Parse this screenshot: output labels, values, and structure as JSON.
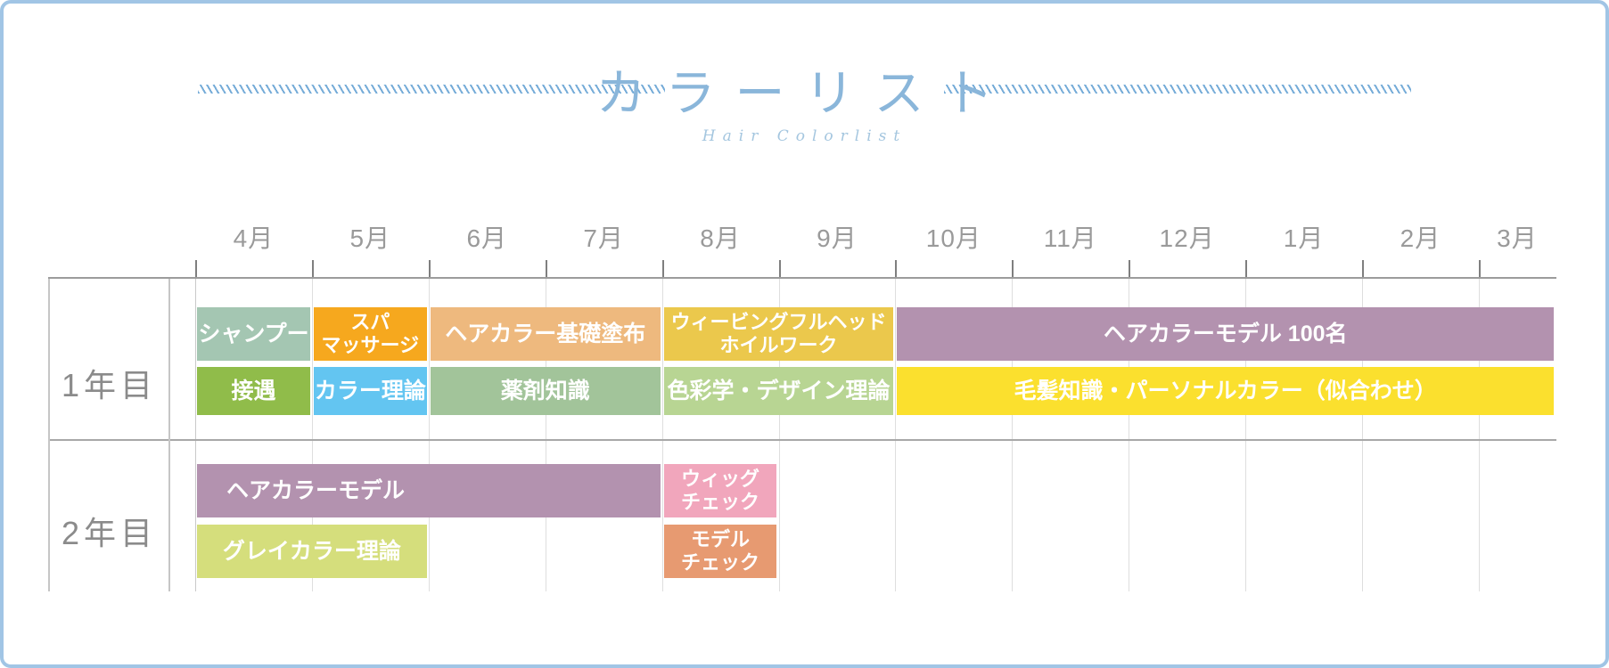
{
  "title": {
    "main": "カラーリスト",
    "sub": "Hair Colorlist"
  },
  "palette": {
    "frame_blue": "#a1c5e5",
    "title_blue": "#8ab6da",
    "subtitle_blue": "#a4c6df",
    "hatch_blue": "#76acd8",
    "row_label_gray": "#8b8b8b",
    "month_label_gray": "#9a9a9a",
    "grid_light": "#dedede",
    "grid_dark": "#9c9c9c",
    "tick_gray": "#7f7f7f",
    "bar_text": "#ffffff"
  },
  "chart_data": {
    "type": "bar",
    "subtype": "gantt-curriculum-timeline",
    "title": "カラーリスト",
    "subtitle": "Hair Colorlist",
    "x_categories": [
      "4月",
      "5月",
      "6月",
      "7月",
      "8月",
      "9月",
      "10月",
      "11月",
      "12月",
      "1月",
      "2月",
      "3月"
    ],
    "grid": true,
    "rows": [
      {
        "label": "1年目",
        "tracks": [
          [
            {
              "label": "シャンプー",
              "lines": [
                "シャンプー"
              ],
              "period": "4月",
              "start_index": 0,
              "span": 1,
              "color": "#a4c6b2"
            },
            {
              "label": "スパ マッサージ",
              "lines": [
                "スパ",
                "マッサージ"
              ],
              "period": "5月",
              "start_index": 1,
              "span": 1,
              "color": "#f6a81e"
            },
            {
              "label": "ヘアカラー基礎塗布",
              "lines": [
                "ヘアカラー基礎塗布"
              ],
              "period": "6月-7月",
              "start_index": 2,
              "span": 2,
              "color": "#eeb97e"
            },
            {
              "label": "ウィービングフルヘッド ホイルワーク",
              "lines": [
                "ウィービングフルヘッド",
                "ホイルワーク"
              ],
              "period": "8月-9月",
              "start_index": 4,
              "span": 2,
              "color": "#ebc84c"
            },
            {
              "label": "ヘアカラーモデル 100名",
              "lines": [
                "ヘアカラーモデル 100名"
              ],
              "period": "10月-3月",
              "start_index": 6,
              "span": 6,
              "color": "#b392af"
            }
          ],
          [
            {
              "label": "接遇",
              "lines": [
                "接遇"
              ],
              "period": "4月",
              "start_index": 0,
              "span": 1,
              "color": "#90bc4a"
            },
            {
              "label": "カラー理論",
              "lines": [
                "カラー理論"
              ],
              "period": "5月",
              "start_index": 1,
              "span": 1,
              "color": "#63c5f1"
            },
            {
              "label": "薬剤知識",
              "lines": [
                "薬剤知識"
              ],
              "period": "6月-7月",
              "start_index": 2,
              "span": 2,
              "color": "#a2c49a"
            },
            {
              "label": "色彩学・デザイン理論",
              "lines": [
                "色彩学・デザイン理論"
              ],
              "period": "8月-9月",
              "start_index": 4,
              "span": 2,
              "color": "#b8d593"
            },
            {
              "label": "毛髪知識・パーソナルカラー（似合わせ）",
              "lines": [
                "毛髪知識・パーソナルカラー（似合わせ）"
              ],
              "period": "10月-3月",
              "start_index": 6,
              "span": 6,
              "color": "#fbe02e"
            }
          ]
        ]
      },
      {
        "label": "2年目",
        "tracks": [
          [
            {
              "label": "ヘアカラーモデル",
              "lines": [
                "ヘアカラーモデル"
              ],
              "period": "4月-7月",
              "start_index": 0,
              "span": 4,
              "color": "#b392af",
              "align": "left"
            },
            {
              "label": "ウィッグ チェック",
              "lines": [
                "ウィッグ",
                "チェック"
              ],
              "period": "8月",
              "start_index": 4,
              "span": 1,
              "color": "#f1a6bc"
            }
          ],
          [
            {
              "label": "グレイカラー理論",
              "lines": [
                "グレイカラー理論"
              ],
              "period": "4月-5月",
              "start_index": 0,
              "span": 2,
              "color": "#d5de7c"
            },
            {
              "label": "モデル チェック",
              "lines": [
                "モデル",
                "チェック"
              ],
              "period": "8月",
              "start_index": 4,
              "span": 1,
              "color": "#e79a71"
            }
          ]
        ]
      }
    ]
  }
}
